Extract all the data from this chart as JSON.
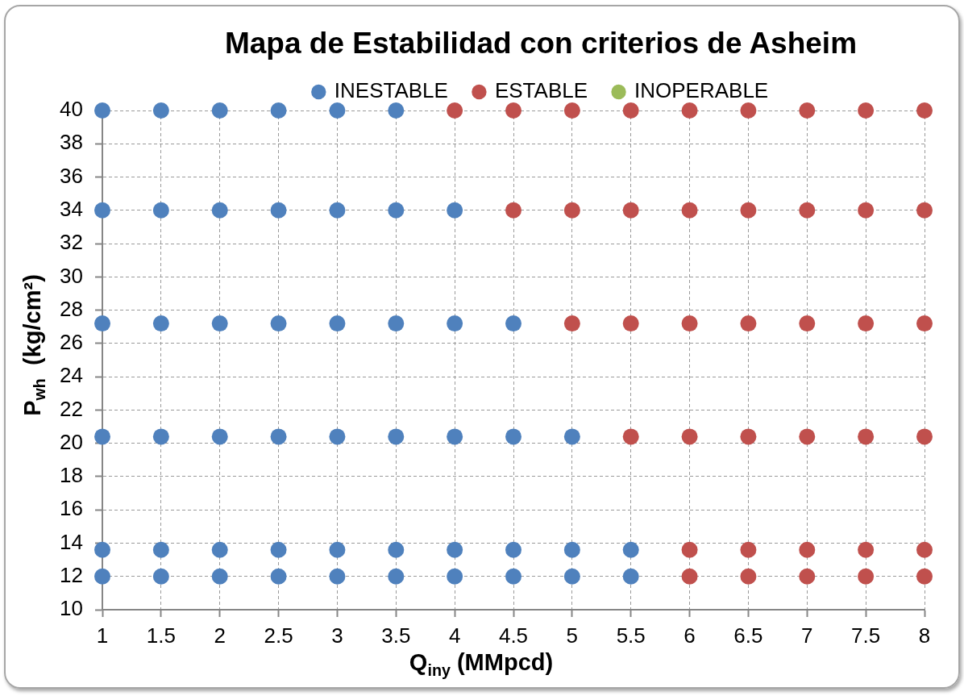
{
  "chart_data": {
    "type": "scatter",
    "title": "Mapa de Estabilidad con criterios de Asheim",
    "xlabel": "Q$_{iny}$ (MMpcd)",
    "ylabel": "P$_{wh}$  (kg/cm²)",
    "series": [
      {
        "name": "INESTABLE",
        "color": "#4f81bd",
        "x": [
          1,
          1.5,
          2,
          2.5,
          3,
          3.5,
          1,
          1.5,
          2,
          2.5,
          3,
          3.5,
          4,
          1,
          1.5,
          2,
          2.5,
          3,
          3.5,
          4,
          4.5,
          1,
          1.5,
          2,
          2.5,
          3,
          3.5,
          4,
          4.5,
          5,
          1,
          1.5,
          2,
          2.5,
          3,
          3.5,
          4,
          4.5,
          5,
          5.5,
          1,
          1.5,
          2,
          2.5,
          3,
          3.5,
          4,
          4.5,
          5,
          5.5
        ],
        "values": [
          40,
          40,
          40,
          40,
          40,
          40,
          34,
          34,
          34,
          34,
          34,
          34,
          34,
          27.2,
          27.2,
          27.2,
          27.2,
          27.2,
          27.2,
          27.2,
          27.2,
          20.4,
          20.4,
          20.4,
          20.4,
          20.4,
          20.4,
          20.4,
          20.4,
          20.4,
          13.6,
          13.6,
          13.6,
          13.6,
          13.6,
          13.6,
          13.6,
          13.6,
          13.6,
          13.6,
          12,
          12,
          12,
          12,
          12,
          12,
          12,
          12,
          12,
          12
        ]
      },
      {
        "name": "ESTABLE",
        "color": "#c0504d",
        "x": [
          4,
          4.5,
          5,
          5.5,
          6,
          6.5,
          7,
          7.5,
          8,
          4.5,
          5,
          5.5,
          6,
          6.5,
          7,
          7.5,
          8,
          5,
          5.5,
          6,
          6.5,
          7,
          7.5,
          8,
          5.5,
          6,
          6.5,
          7,
          7.5,
          8,
          6,
          6.5,
          7,
          7.5,
          8,
          6,
          6.5,
          7,
          7.5,
          8
        ],
        "values": [
          40,
          40,
          40,
          40,
          40,
          40,
          40,
          40,
          40,
          34,
          34,
          34,
          34,
          34,
          34,
          34,
          34,
          27.2,
          27.2,
          27.2,
          27.2,
          27.2,
          27.2,
          27.2,
          20.4,
          20.4,
          20.4,
          20.4,
          20.4,
          20.4,
          13.6,
          13.6,
          13.6,
          13.6,
          13.6,
          12,
          12,
          12,
          12,
          12
        ]
      },
      {
        "name": "INOPERABLE",
        "color": "#9bbb59"
      }
    ],
    "xlim": [
      1,
      8
    ],
    "ylim": [
      10,
      40
    ],
    "xticks": [
      1,
      1.5,
      2,
      2.5,
      3,
      3.5,
      4,
      4.5,
      5,
      5.5,
      6,
      6.5,
      7,
      7.5,
      8
    ],
    "yticks": [
      10,
      12,
      14,
      16,
      18,
      20,
      22,
      24,
      26,
      28,
      30,
      32,
      34,
      36,
      38,
      40
    ],
    "grid": true,
    "legend": "top",
    "marker": "circle"
  }
}
